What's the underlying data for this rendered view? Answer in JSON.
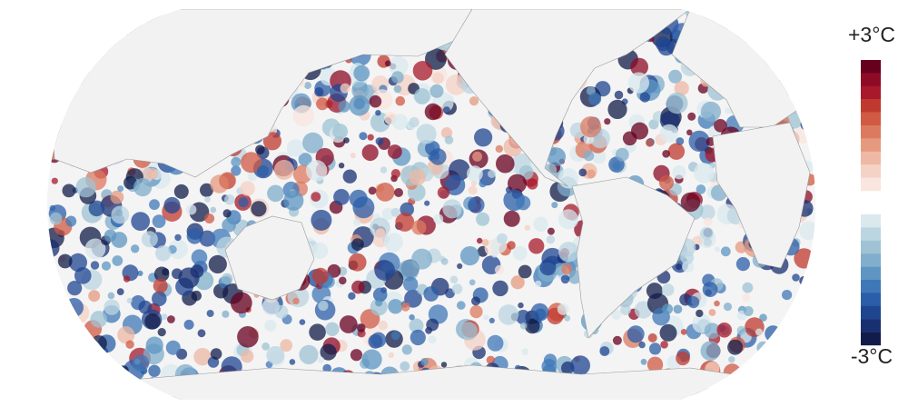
{
  "legend": {
    "max_label": "+3°C",
    "min_label": "-3°C"
  }
}
